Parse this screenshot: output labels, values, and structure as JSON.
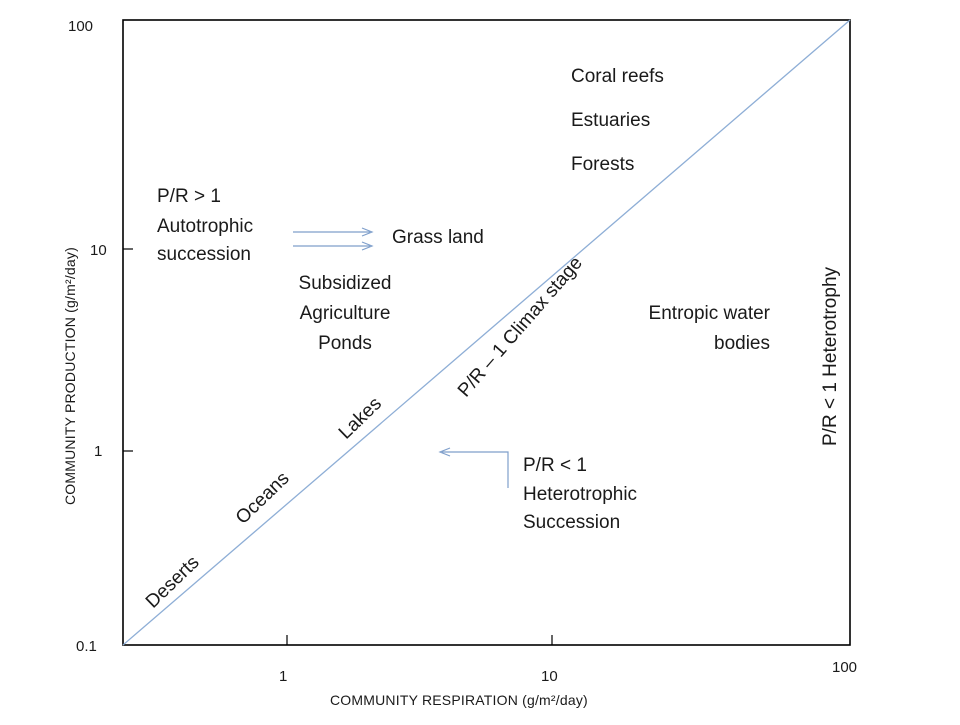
{
  "axes": {
    "x_title": "COMMUNITY RESPIRATION (g/m²/day)",
    "y_title": "COMMUNITY PRODUCTION (g/m²/day)",
    "x_ticks": [
      "1",
      "10",
      "100"
    ],
    "y_ticks": [
      "100",
      "10",
      "1",
      "0.1"
    ],
    "scale": "log"
  },
  "diagonal": {
    "label": "P/R – 1 Climax stage",
    "items": [
      "Deserts",
      "Oceans",
      "Lakes"
    ]
  },
  "upper_region": {
    "condition": "P/R > 1",
    "succession_line1": "Autotrophic",
    "succession_line2": "succession",
    "target": "Grass land",
    "subsidized": [
      "Subsidized",
      "Agriculture",
      "Ponds"
    ],
    "top_items": [
      "Coral reefs",
      "Estuaries",
      "Forests"
    ]
  },
  "lower_region": {
    "condition": "P/R < 1",
    "succession_line1": "Heterotrophic",
    "succession_line2": "Succession",
    "entropic": [
      "Entropic water",
      "bodies"
    ],
    "side_label": "P/R < 1 Heterotrophy"
  },
  "colors": {
    "diagonal": "#8eaed6",
    "arrow": "#7f9fcb",
    "frame": "#000000"
  }
}
